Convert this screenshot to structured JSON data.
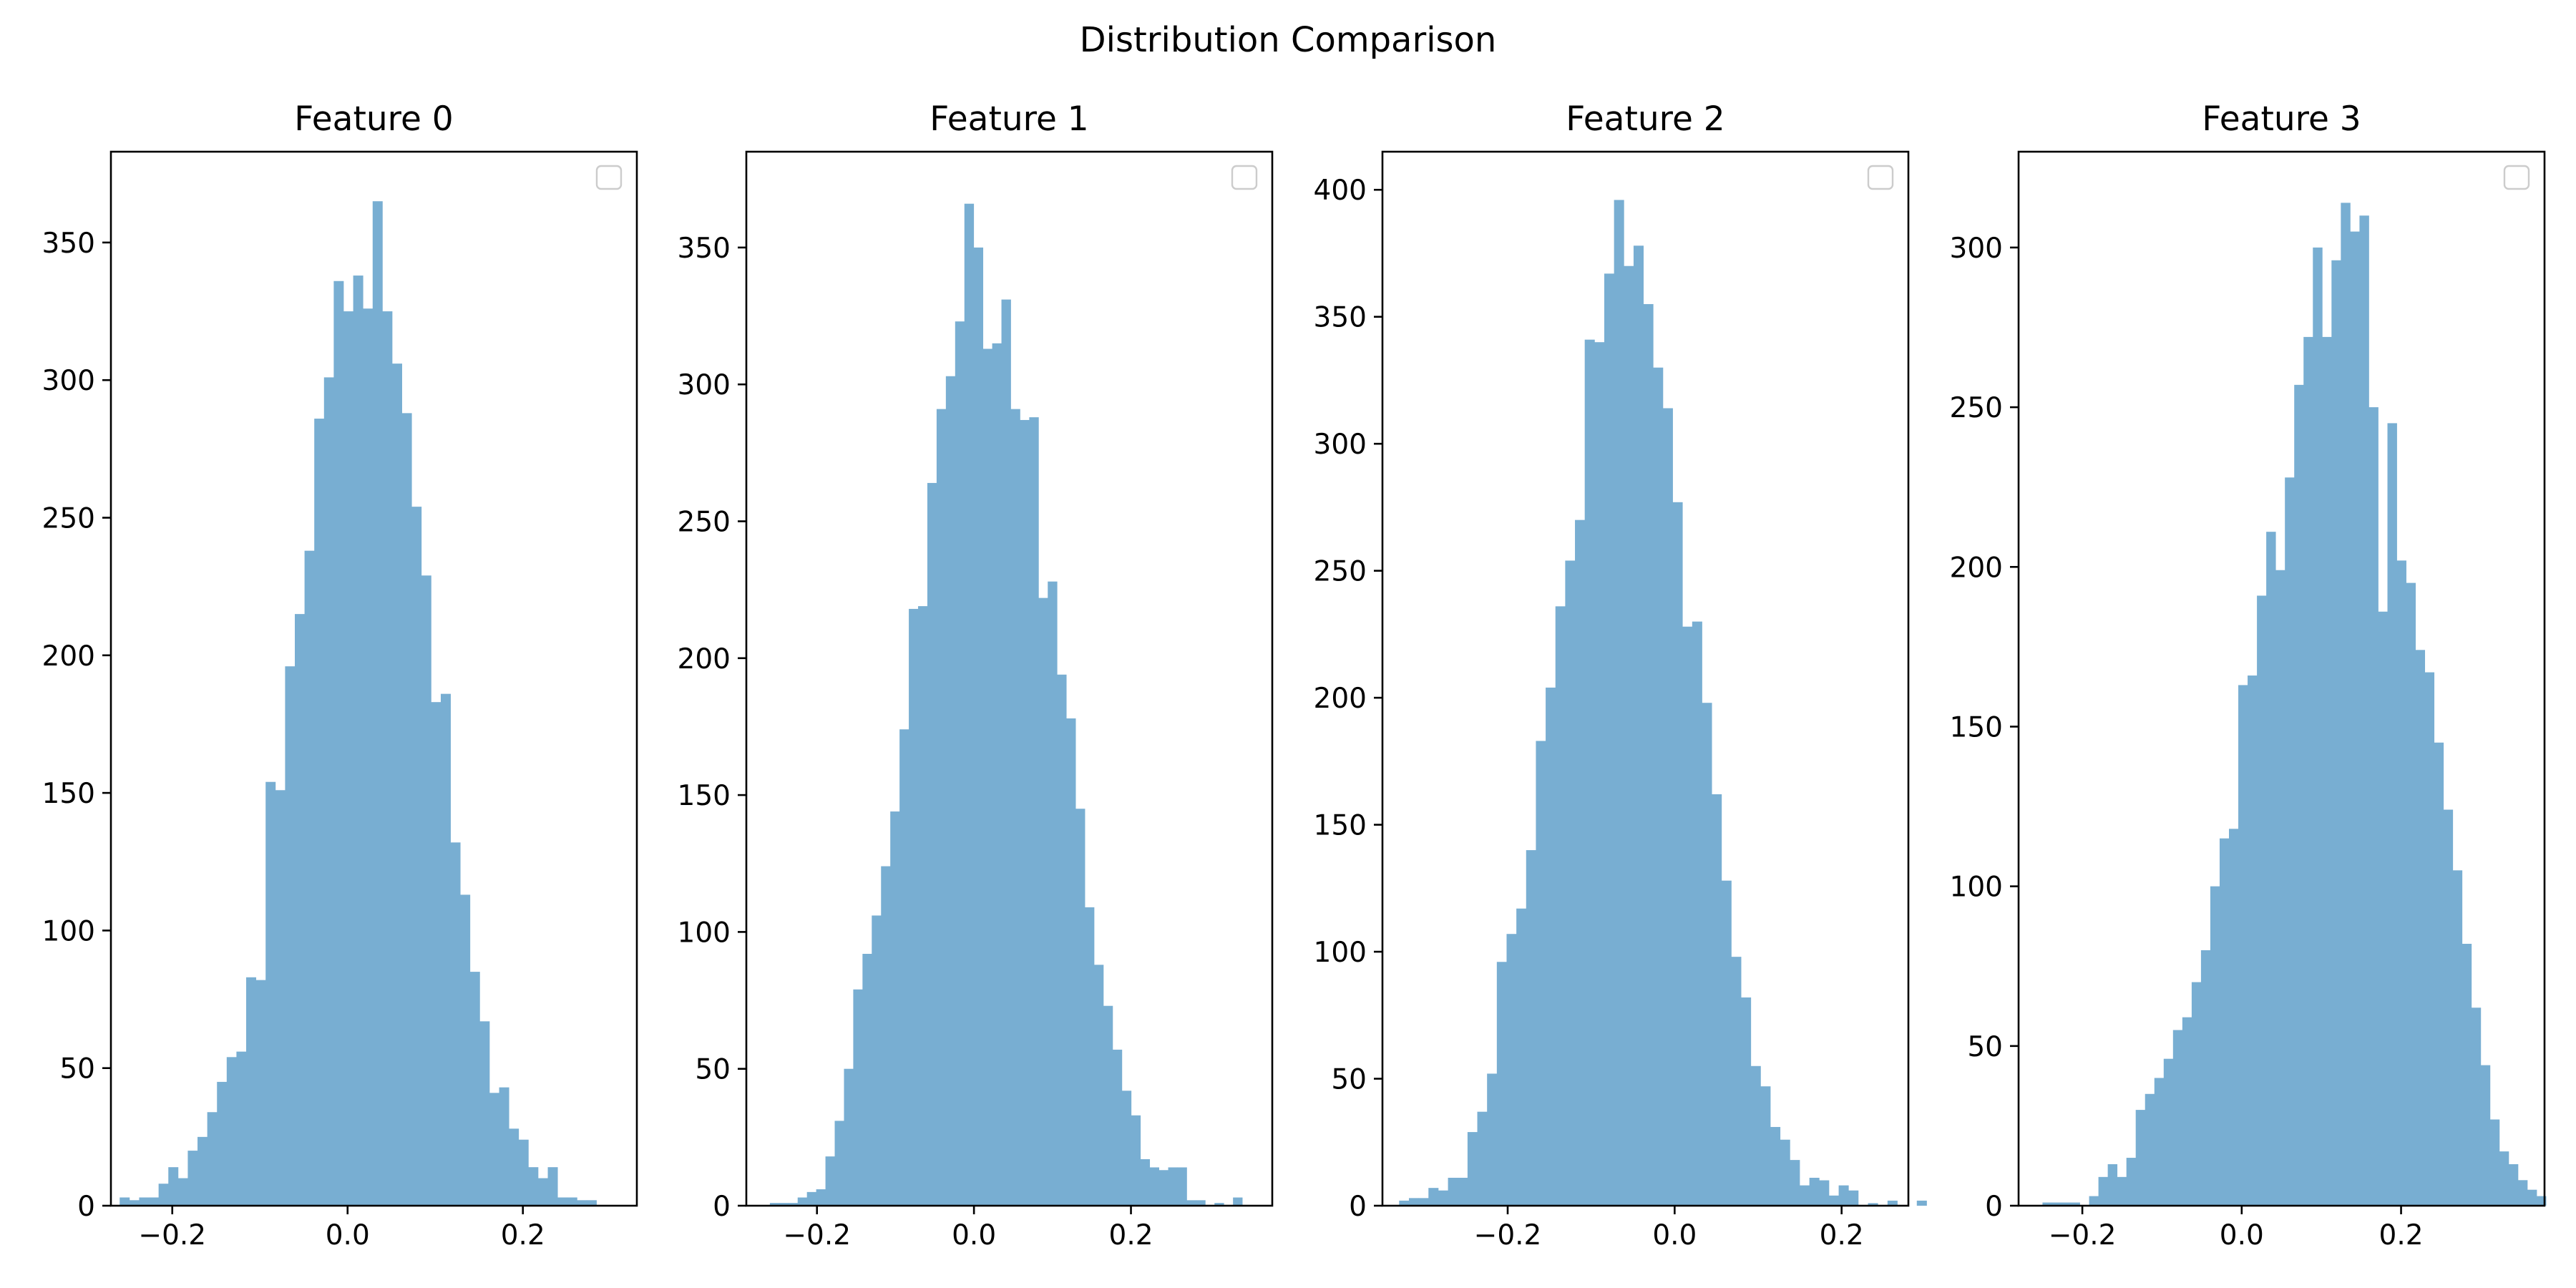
{
  "suptitle": "Distribution Comparison",
  "chart_data": [
    {
      "type": "bar",
      "title": "Feature 0",
      "xlabel": "",
      "ylabel": "",
      "xlim": [
        -0.27,
        0.33
      ],
      "ylim": [
        0,
        383
      ],
      "xticks": [
        -0.2,
        0.0,
        0.2
      ],
      "xtick_labels": [
        "−0.2",
        "0.0",
        "0.2"
      ],
      "yticks": [
        0,
        50,
        100,
        150,
        200,
        250,
        300,
        350
      ],
      "ytick_labels": [
        "0",
        "50",
        "100",
        "150",
        "200",
        "250",
        "300",
        "350"
      ],
      "legend": "top-right (empty)",
      "bin_start": -0.26,
      "bin_width": 0.0111,
      "values": [
        3,
        2,
        3,
        3,
        8,
        14,
        10,
        20,
        25,
        34,
        45,
        54,
        56,
        83,
        82,
        154,
        151,
        196,
        215,
        238,
        286,
        301,
        336,
        325,
        338,
        326,
        365,
        325,
        306,
        288,
        254,
        229,
        183,
        186,
        132,
        113,
        85,
        67,
        41,
        43,
        28,
        24,
        14,
        10,
        14,
        3,
        3,
        2,
        2,
        0
      ]
    },
    {
      "type": "bar",
      "title": "Feature 1",
      "xlabel": "",
      "ylabel": "",
      "xlim": [
        -0.29,
        0.38
      ],
      "ylim": [
        0,
        385
      ],
      "xticks": [
        -0.2,
        0.0,
        0.2
      ],
      "xtick_labels": [
        "−0.2",
        "0.0",
        "0.2"
      ],
      "yticks": [
        0,
        50,
        100,
        150,
        200,
        250,
        300,
        350
      ],
      "ytick_labels": [
        "0",
        "50",
        "100",
        "150",
        "200",
        "250",
        "300",
        "350"
      ],
      "legend": "top-right (empty)",
      "bin_start": -0.26,
      "bin_width": 0.0118,
      "values": [
        1,
        1,
        1,
        3,
        5,
        6,
        18,
        31,
        50,
        79,
        92,
        106,
        124,
        144,
        174,
        218,
        219,
        264,
        291,
        303,
        323,
        366,
        350,
        313,
        315,
        331,
        291,
        287,
        288,
        222,
        228,
        194,
        178,
        145,
        109,
        88,
        73,
        57,
        42,
        33,
        17,
        14,
        13,
        14,
        14,
        2,
        2,
        0,
        1,
        0,
        3
      ]
    },
    {
      "type": "bar",
      "title": "Feature 2",
      "xlabel": "",
      "ylabel": "",
      "xlim": [
        -0.35,
        0.28
      ],
      "ylim": [
        0,
        415
      ],
      "xticks": [
        -0.2,
        0.0,
        0.2
      ],
      "xtick_labels": [
        "−0.2",
        "0.0",
        "0.2"
      ],
      "yticks": [
        0,
        50,
        100,
        150,
        200,
        250,
        300,
        350,
        400
      ],
      "ytick_labels": [
        "0",
        "50",
        "100",
        "150",
        "200",
        "250",
        "300",
        "350",
        "400"
      ],
      "legend": "top-right (empty)",
      "bin_start": -0.33,
      "bin_width": 0.0117,
      "values": [
        2,
        3,
        3,
        7,
        6,
        11,
        11,
        29,
        37,
        52,
        96,
        107,
        117,
        140,
        183,
        204,
        236,
        254,
        270,
        341,
        340,
        367,
        396,
        370,
        378,
        355,
        330,
        314,
        277,
        228,
        230,
        198,
        162,
        128,
        98,
        82,
        55,
        47,
        31,
        26,
        18,
        8,
        11,
        10,
        4,
        8,
        6,
        0,
        1,
        0,
        2,
        0,
        0,
        2
      ]
    },
    {
      "type": "bar",
      "title": "Feature 3",
      "xlabel": "",
      "ylabel": "",
      "xlim": [
        -0.28,
        0.38
      ],
      "ylim": [
        0,
        330
      ],
      "xticks": [
        -0.2,
        0.0,
        0.2
      ],
      "xtick_labels": [
        "−0.2",
        "0.0",
        "0.2"
      ],
      "yticks": [
        0,
        50,
        100,
        150,
        200,
        250,
        300
      ],
      "ytick_labels": [
        "0",
        "50",
        "100",
        "150",
        "200",
        "250",
        "300"
      ],
      "legend": "top-right (empty)",
      "bin_start": -0.25,
      "bin_width": 0.0117,
      "values": [
        1,
        1,
        1,
        1,
        0,
        3,
        9,
        13,
        9,
        15,
        30,
        35,
        40,
        46,
        55,
        59,
        70,
        80,
        100,
        115,
        118,
        163,
        166,
        191,
        211,
        199,
        228,
        257,
        272,
        300,
        272,
        296,
        314,
        305,
        310,
        250,
        186,
        245,
        202,
        195,
        174,
        167,
        145,
        124,
        105,
        82,
        62,
        44,
        27,
        17,
        13,
        8,
        5,
        3
      ]
    }
  ]
}
